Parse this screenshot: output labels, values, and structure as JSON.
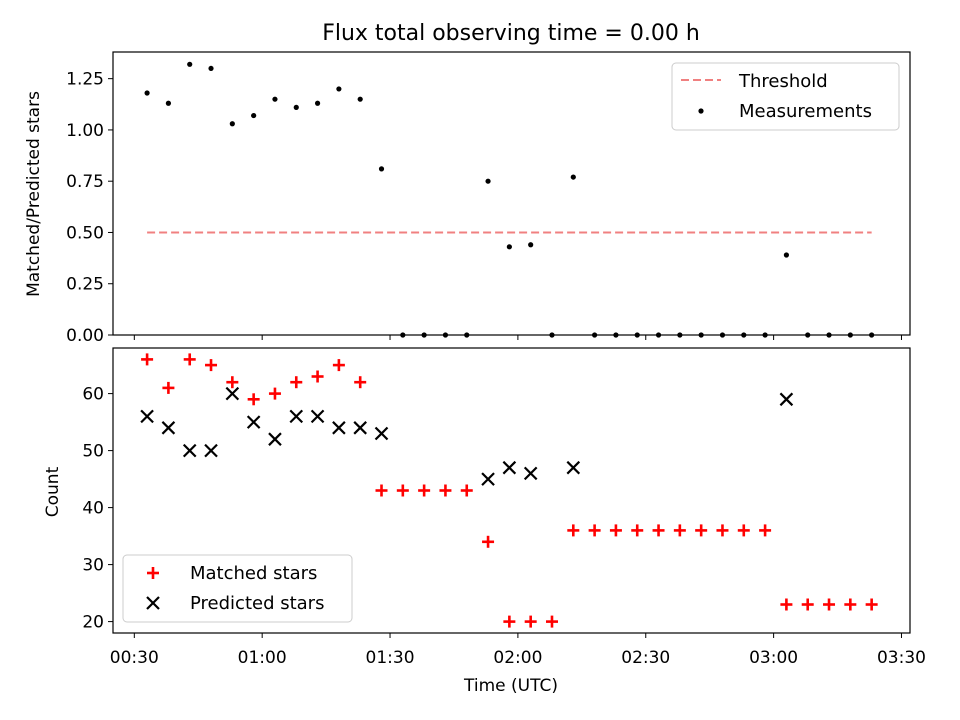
{
  "chart_data": [
    {
      "type": "scatter",
      "title": "Flux total observing time = 0.00 h",
      "xlabel": "",
      "ylabel": "Matched/Predicted stars",
      "xlim": [
        "00:25",
        "03:32"
      ],
      "ylim": [
        0,
        1.38
      ],
      "yticks": [
        "0.00",
        "0.25",
        "0.50",
        "0.75",
        "1.00",
        "1.25"
      ],
      "grid": false,
      "legend_position": "top-right",
      "threshold": {
        "name": "Threshold",
        "value": 0.5,
        "x_start": "00:33",
        "x_end": "03:23",
        "color": "#f08080"
      },
      "series": [
        {
          "name": "Measurements",
          "color": "#000000",
          "x": [
            "00:33",
            "00:38",
            "00:43",
            "00:48",
            "00:53",
            "00:58",
            "01:03",
            "01:08",
            "01:13",
            "01:18",
            "01:23",
            "01:28",
            "01:33",
            "01:38",
            "01:43",
            "01:48",
            "01:53",
            "01:58",
            "02:03",
            "02:08",
            "02:13",
            "02:18",
            "02:23",
            "02:28",
            "02:33",
            "02:38",
            "02:43",
            "02:48",
            "02:53",
            "02:58",
            "03:03",
            "03:08",
            "03:13",
            "03:18",
            "03:23"
          ],
          "y": [
            1.18,
            1.13,
            1.32,
            1.3,
            1.03,
            1.07,
            1.15,
            1.11,
            1.13,
            1.2,
            1.15,
            0.81,
            0.0,
            0.0,
            0.0,
            0.0,
            0.75,
            0.43,
            0.44,
            0.0,
            0.77,
            0.0,
            0.0,
            0.0,
            0.0,
            0.0,
            0.0,
            0.0,
            0.0,
            0.0,
            0.39,
            0.0,
            0.0,
            0.0,
            0.0
          ]
        }
      ]
    },
    {
      "type": "scatter",
      "title": "",
      "xlabel": "Time (UTC)",
      "ylabel": "Count",
      "xlim": [
        "00:25",
        "03:32"
      ],
      "ylim": [
        18,
        68
      ],
      "yticks": [
        "20",
        "30",
        "40",
        "50",
        "60"
      ],
      "xticks": [
        "00:30",
        "01:00",
        "01:30",
        "02:00",
        "02:30",
        "03:00",
        "03:30"
      ],
      "grid": false,
      "legend_position": "bottom-left",
      "series": [
        {
          "name": "Matched stars",
          "marker": "plus",
          "color": "#ff0000",
          "x": [
            "00:33",
            "00:38",
            "00:43",
            "00:48",
            "00:53",
            "00:58",
            "01:03",
            "01:08",
            "01:13",
            "01:18",
            "01:23",
            "01:28",
            "01:33",
            "01:38",
            "01:43",
            "01:48",
            "01:53",
            "01:58",
            "02:03",
            "02:08",
            "02:13",
            "02:18",
            "02:23",
            "02:28",
            "02:33",
            "02:38",
            "02:43",
            "02:48",
            "02:53",
            "02:58",
            "03:03",
            "03:08",
            "03:13",
            "03:18",
            "03:23"
          ],
          "y": [
            66,
            61,
            66,
            65,
            62,
            59,
            60,
            62,
            63,
            65,
            62,
            43,
            43,
            43,
            43,
            43,
            34,
            20,
            20,
            20,
            36,
            36,
            36,
            36,
            36,
            36,
            36,
            36,
            36,
            36,
            23,
            23,
            23,
            23,
            23
          ]
        },
        {
          "name": "Predicted stars",
          "marker": "x",
          "color": "#000000",
          "x": [
            "00:33",
            "00:38",
            "00:43",
            "00:48",
            "00:53",
            "00:58",
            "01:03",
            "01:08",
            "01:13",
            "01:18",
            "01:23",
            "01:28",
            "01:53",
            "01:58",
            "02:03",
            "02:13",
            "03:03"
          ],
          "y": [
            56,
            54,
            50,
            50,
            60,
            55,
            52,
            56,
            56,
            54,
            54,
            53,
            45,
            47,
            46,
            47,
            59
          ]
        }
      ]
    }
  ]
}
